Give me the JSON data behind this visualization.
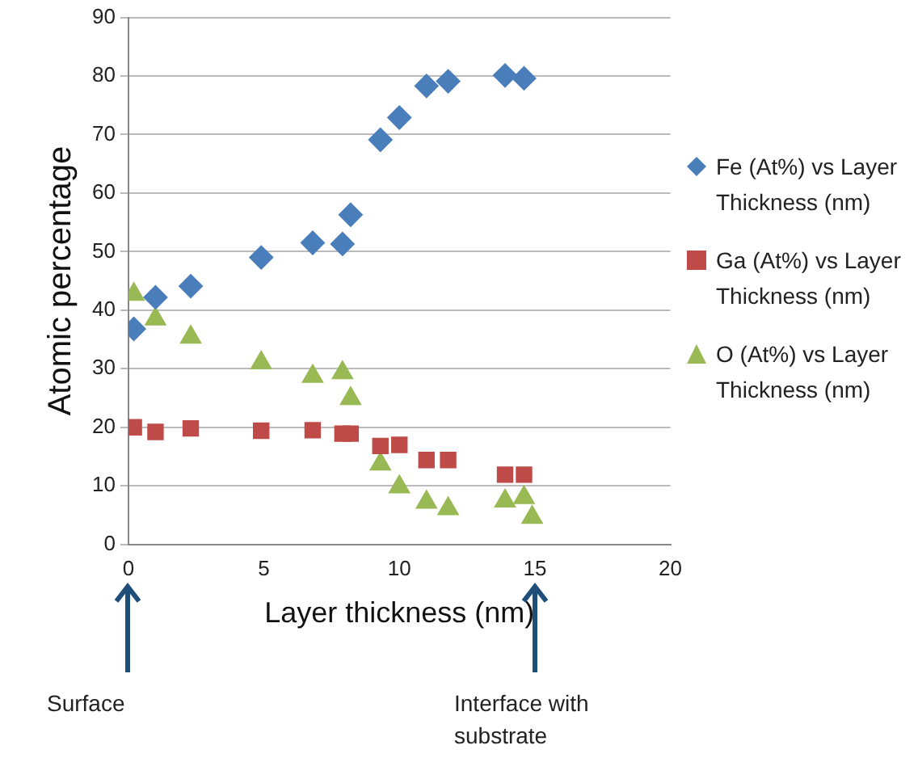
{
  "chart_data": {
    "type": "scatter",
    "xlabel": "Layer thickness (nm)",
    "ylabel": "Atomic percentage",
    "xlim": [
      0,
      20
    ],
    "xticks": [
      0,
      5,
      10,
      15,
      20
    ],
    "ylim": [
      0,
      90
    ],
    "yticks": [
      0,
      10,
      20,
      30,
      40,
      50,
      60,
      70,
      80,
      90
    ],
    "grid": "y",
    "legend": "right",
    "series": [
      {
        "name": "Fe (At%) vs Layer Thickness (nm)",
        "color": "#4a7ebb",
        "marker": "diamond",
        "x": [
          0.2,
          1.0,
          2.3,
          4.9,
          6.8,
          7.9,
          8.2,
          9.3,
          10.0,
          11.0,
          11.8,
          13.9,
          14.6
        ],
        "values": [
          36.8,
          42.2,
          44.1,
          49.0,
          51.5,
          51.3,
          56.3,
          69.1,
          72.9,
          78.3,
          79.1,
          80.1,
          79.6
        ]
      },
      {
        "name": "Ga (At%) vs Layer Thickness (nm)",
        "color": "#be4b48",
        "marker": "square",
        "x": [
          0.2,
          1.0,
          2.3,
          4.9,
          6.8,
          7.9,
          8.2,
          9.3,
          10.0,
          11.0,
          11.8,
          13.9,
          14.6
        ],
        "values": [
          20.0,
          19.2,
          19.8,
          19.4,
          19.5,
          18.9,
          18.9,
          16.8,
          17.0,
          14.4,
          14.4,
          11.9,
          11.9
        ]
      },
      {
        "name": "O (At%) vs Layer Thickness (nm)",
        "color": "#98b954",
        "marker": "triangle",
        "x": [
          0.2,
          1.0,
          2.3,
          4.9,
          6.8,
          7.9,
          8.2,
          9.3,
          10.0,
          11.0,
          11.8,
          13.9,
          14.6,
          14.9
        ],
        "values": [
          42.7,
          38.5,
          35.4,
          31.0,
          28.7,
          29.3,
          24.9,
          13.7,
          9.8,
          7.2,
          6.1,
          7.4,
          8.0,
          4.6
        ]
      }
    ],
    "annotations": [
      "Surface",
      "Interface with substrate"
    ]
  }
}
